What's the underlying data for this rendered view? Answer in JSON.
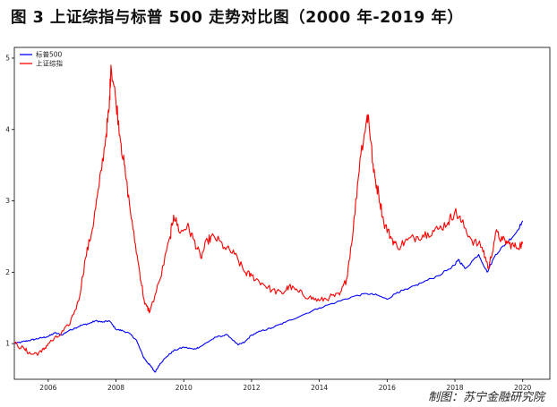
{
  "figure": {
    "title": "图 3  上证综指与标普 500 走势对比图（2000 年-2019 年）",
    "source": "制图：苏宁金融研究院"
  },
  "chart_data": {
    "type": "line",
    "title": "",
    "xlabel": "",
    "ylabel": "",
    "xlim": [
      2005.0,
      2020.8
    ],
    "ylim": [
      0.5,
      5.15
    ],
    "xticks": [
      "2006",
      "2008",
      "2010",
      "2012",
      "2014",
      "2016",
      "2018",
      "2020"
    ],
    "yticks": [
      "1",
      "2",
      "3",
      "4",
      "5"
    ],
    "legend": "top-left",
    "grid": false,
    "series": [
      {
        "name": "标普500",
        "color": "#0000ff",
        "x": [
          2005.0,
          2005.2,
          2005.4,
          2005.6,
          2005.8,
          2006.0,
          2006.2,
          2006.4,
          2006.6,
          2006.8,
          2007.0,
          2007.2,
          2007.4,
          2007.6,
          2007.8,
          2008.0,
          2008.2,
          2008.4,
          2008.6,
          2008.8,
          2008.9,
          2009.0,
          2009.15,
          2009.3,
          2009.5,
          2009.7,
          2010.0,
          2010.3,
          2010.5,
          2010.8,
          2011.0,
          2011.3,
          2011.6,
          2011.8,
          2012.0,
          2012.3,
          2012.6,
          2013.0,
          2013.5,
          2014.0,
          2014.5,
          2015.0,
          2015.4,
          2015.7,
          2016.0,
          2016.3,
          2016.6,
          2017.0,
          2017.5,
          2018.0,
          2018.1,
          2018.3,
          2018.7,
          2018.95,
          2019.2,
          2019.5,
          2019.8,
          2020.0
        ],
        "values": [
          1.0,
          1.02,
          1.04,
          1.06,
          1.08,
          1.1,
          1.15,
          1.12,
          1.18,
          1.22,
          1.26,
          1.28,
          1.32,
          1.3,
          1.32,
          1.2,
          1.18,
          1.14,
          1.05,
          0.82,
          0.75,
          0.7,
          0.6,
          0.72,
          0.82,
          0.9,
          0.95,
          0.92,
          0.96,
          1.05,
          1.1,
          1.12,
          0.98,
          1.02,
          1.12,
          1.18,
          1.22,
          1.3,
          1.4,
          1.5,
          1.58,
          1.66,
          1.7,
          1.68,
          1.62,
          1.72,
          1.76,
          1.85,
          1.95,
          2.1,
          2.18,
          2.05,
          2.25,
          2.0,
          2.25,
          2.4,
          2.55,
          2.72
        ]
      },
      {
        "name": "上证综指",
        "color": "#ff0000",
        "x": [
          2005.0,
          2005.3,
          2005.5,
          2005.8,
          2006.0,
          2006.3,
          2006.6,
          2006.9,
          2007.1,
          2007.3,
          2007.5,
          2007.7,
          2007.8,
          2007.85,
          2008.0,
          2008.15,
          2008.3,
          2008.5,
          2008.7,
          2008.85,
          2009.0,
          2009.3,
          2009.6,
          2009.7,
          2009.9,
          2010.1,
          2010.3,
          2010.5,
          2010.7,
          2010.9,
          2011.2,
          2011.5,
          2011.8,
          2012.0,
          2012.3,
          2012.6,
          2012.9,
          2013.1,
          2013.4,
          2013.7,
          2014.0,
          2014.3,
          2014.6,
          2014.8,
          2015.0,
          2015.2,
          2015.4,
          2015.45,
          2015.6,
          2015.75,
          2015.9,
          2016.1,
          2016.3,
          2016.6,
          2016.9,
          2017.2,
          2017.5,
          2017.8,
          2018.0,
          2018.2,
          2018.5,
          2018.8,
          2019.0,
          2019.2,
          2019.4,
          2019.6,
          2019.8,
          2020.0
        ],
        "values": [
          1.0,
          0.92,
          0.85,
          0.88,
          1.0,
          1.1,
          1.25,
          1.6,
          2.2,
          2.6,
          3.2,
          3.9,
          4.3,
          4.9,
          4.4,
          3.8,
          3.3,
          2.6,
          2.0,
          1.55,
          1.45,
          1.9,
          2.5,
          2.8,
          2.55,
          2.65,
          2.45,
          2.2,
          2.45,
          2.5,
          2.35,
          2.25,
          2.0,
          1.95,
          1.85,
          1.75,
          1.7,
          1.8,
          1.72,
          1.65,
          1.6,
          1.65,
          1.68,
          1.9,
          2.6,
          3.6,
          4.15,
          4.2,
          3.4,
          3.1,
          2.7,
          2.5,
          2.35,
          2.45,
          2.5,
          2.55,
          2.6,
          2.7,
          2.85,
          2.7,
          2.45,
          2.35,
          2.05,
          2.55,
          2.45,
          2.4,
          2.35,
          2.4
        ]
      }
    ]
  }
}
